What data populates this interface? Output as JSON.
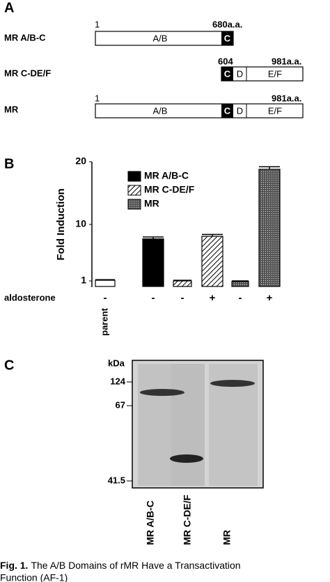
{
  "panel_a": {
    "label": "A",
    "rows": [
      {
        "name": "MR A/B-C",
        "start": "1",
        "end": "680a.a.",
        "domains": [
          "A/B",
          "C"
        ]
      },
      {
        "name": "MR C-DE/F",
        "start": "604",
        "end": "981a.a.",
        "domains": [
          "C",
          "D",
          "E/F"
        ]
      },
      {
        "name": "MR",
        "start": "1",
        "end": "981a.a.",
        "domains": [
          "A/B",
          "C",
          "D",
          "E/F"
        ]
      }
    ]
  },
  "chart_data": {
    "type": "bar",
    "panel_label": "B",
    "ylabel": "Fold Induction",
    "categories": [
      "parent",
      null,
      null,
      null,
      null,
      null
    ],
    "values": [
      1.1,
      7.7,
      1.0,
      8.1,
      0.9,
      18.8
    ],
    "errors": [
      0.1,
      0.3,
      0.1,
      0.3,
      0.1,
      0.4
    ],
    "fills": [
      "white",
      "solid",
      "hatch",
      "hatch",
      "dots",
      "dots"
    ],
    "treatment_label": "aldosterone",
    "treatment": [
      "-",
      "-",
      "-",
      "+",
      "-",
      "+"
    ],
    "legend": [
      {
        "name": "MR A/B-C",
        "fill": "solid"
      },
      {
        "name": "MR C-DE/F",
        "fill": "hatch"
      },
      {
        "name": "MR",
        "fill": "dots"
      }
    ],
    "ylim": [
      0,
      20
    ],
    "yticks": [
      1,
      10,
      20
    ]
  },
  "panel_c": {
    "label": "C",
    "unit": "kDa",
    "markers": [
      "124",
      "67",
      "41.5"
    ],
    "lanes": [
      "MR A/B-C",
      "MR C-DE/F",
      "MR"
    ]
  },
  "caption": {
    "prefix": "Fig. 1.",
    "line1": "The A/B Domains of rMR Have a Transactivation",
    "line2": "Function (AF-1)"
  }
}
